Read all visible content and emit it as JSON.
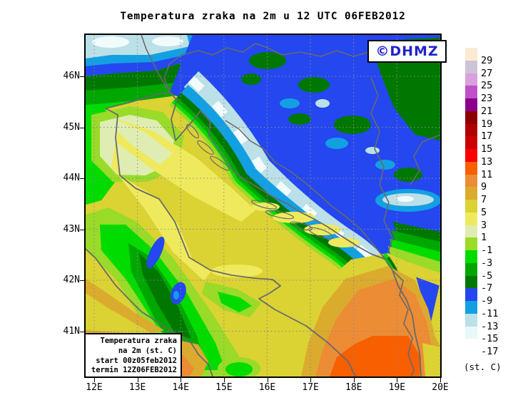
{
  "title": "Temperatura zraka na 2m u 12 UTC 06FEB2012",
  "logo": {
    "label": "©DHMZ"
  },
  "axes": {
    "x_ticks": [
      "12E",
      "13E",
      "14E",
      "15E",
      "16E",
      "17E",
      "18E",
      "19E",
      "20E"
    ],
    "y_ticks": [
      "46N",
      "45N",
      "44N",
      "43N",
      "42N",
      "41N"
    ]
  },
  "inset": {
    "line1": "Temperatura zraka",
    "line2": "na 2m (st. C)",
    "line3": "start 00z05feb2012",
    "line4": "termin 12Z06FEB2012"
  },
  "legend": {
    "unit": "(st. C)",
    "entries": [
      {
        "label": "29",
        "color": "#FCEAD3"
      },
      {
        "label": "27",
        "color": "#CEC3D6"
      },
      {
        "label": "25",
        "color": "#D9A0DC"
      },
      {
        "label": "23",
        "color": "#C050C8"
      },
      {
        "label": "21",
        "color": "#8B008B"
      },
      {
        "label": "19",
        "color": "#8E0000"
      },
      {
        "label": "17",
        "color": "#B10000"
      },
      {
        "label": "15",
        "color": "#CD0000"
      },
      {
        "label": "13",
        "color": "#FA0000"
      },
      {
        "label": "11",
        "color": "#F85F00"
      },
      {
        "label": "9",
        "color": "#EC8C35"
      },
      {
        "label": "7",
        "color": "#DBAB2E"
      },
      {
        "label": "5",
        "color": "#DBD233"
      },
      {
        "label": "3",
        "color": "#EFEA5D"
      },
      {
        "label": "1",
        "color": "#DFEDB3"
      },
      {
        "label": "-1",
        "color": "#99DB28"
      },
      {
        "label": "-3",
        "color": "#00DB00"
      },
      {
        "label": "-5",
        "color": "#00A700"
      },
      {
        "label": "-7",
        "color": "#007800"
      },
      {
        "label": "-9",
        "color": "#2447F0"
      },
      {
        "label": "-11",
        "color": "#12A0E2"
      },
      {
        "label": "-13",
        "color": "#BCE0E8"
      },
      {
        "label": "-15",
        "color": "#E8F8FA"
      },
      {
        "label": "-17",
        "color": "#FFFFFF"
      }
    ]
  },
  "colors": {
    "logo_blue": "#2222CC",
    "coast_grey": "#6A6A6A",
    "frame_black": "#000000"
  }
}
